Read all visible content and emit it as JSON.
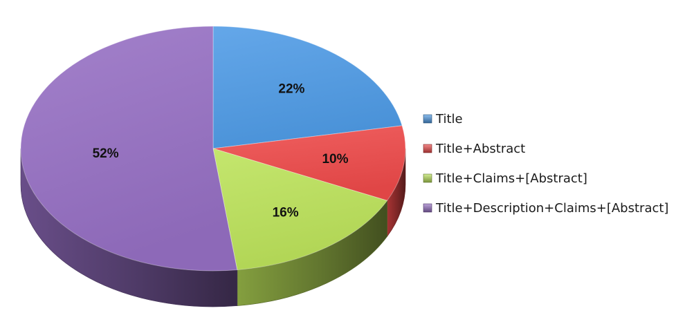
{
  "chart_data": {
    "type": "pie",
    "title": "",
    "categories": [
      "Title",
      "Title+Abstract",
      "Title+Claims+[Abstract]",
      "Title+Description+Claims+[Abstract]"
    ],
    "values": [
      22,
      10,
      16,
      52
    ],
    "data_labels": [
      "22%",
      "10%",
      "16%",
      "52%"
    ],
    "colors": [
      "#4f9be6",
      "#ee4a4a",
      "#bce35a",
      "#9670c4"
    ],
    "legend": {
      "position": "right",
      "entries": [
        "Title",
        "Title+Abstract",
        "Title+Claims+[Abstract]",
        "Title+Description+Claims+[Abstract]"
      ]
    },
    "style": "3d-pie"
  }
}
